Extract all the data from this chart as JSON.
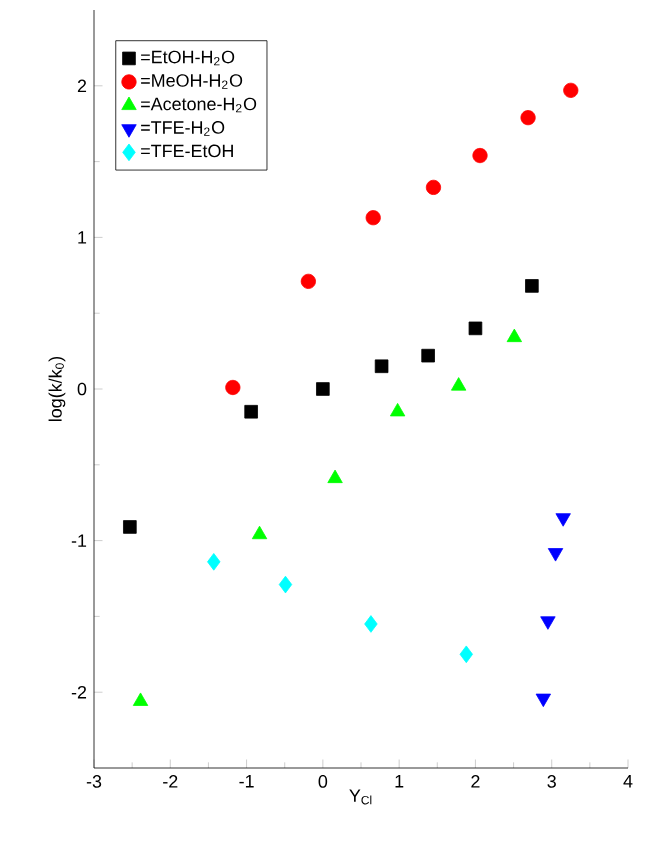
{
  "chart_data": {
    "type": "scatter",
    "xlabel": "Y$_{Cl}$",
    "ylabel": "log(k/k$_{0}$)",
    "xlim": [
      -3,
      4
    ],
    "ylim": [
      -2.5,
      2.5
    ],
    "xticks": [
      -3,
      -2,
      -1,
      0,
      1,
      2,
      3,
      4
    ],
    "yticks": [
      -2,
      -1,
      0,
      1,
      2
    ],
    "grid": false,
    "legend": "top left",
    "series": [
      {
        "name": "=EtOH-H$_{2}$O",
        "color": "#000000",
        "marker": "square",
        "x": [
          -2.53,
          -0.94,
          0.0,
          0.77,
          1.38,
          2.0,
          2.74
        ],
        "values": [
          -0.91,
          -0.15,
          0.0,
          0.15,
          0.22,
          0.4,
          0.68
        ]
      },
      {
        "name": "=MeOH-H$_{2}$O",
        "color": "#ff0000",
        "marker": "circle",
        "x": [
          -1.18,
          -0.19,
          0.66,
          1.45,
          2.06,
          2.69,
          3.25
        ],
        "values": [
          0.01,
          0.71,
          1.13,
          1.33,
          1.54,
          1.79,
          1.97
        ]
      },
      {
        "name": "=Acetone-H$_{2}$O",
        "color": "#00ff00",
        "marker": "triangle",
        "x": [
          -2.39,
          -0.83,
          0.16,
          0.98,
          1.78,
          2.51
        ],
        "values": [
          -2.06,
          -0.96,
          -0.59,
          -0.15,
          0.02,
          0.34
        ]
      },
      {
        "name": "=TFE-H$_{2}$O",
        "color": "#0000ff",
        "marker": "triangle-down",
        "x": [
          2.89,
          2.95,
          3.05,
          3.15
        ],
        "values": [
          -2.04,
          -1.53,
          -1.08,
          -0.85
        ]
      },
      {
        "name": "=TFE-EtOH",
        "color": "#00ffff",
        "marker": "diamond",
        "x": [
          -1.43,
          -0.49,
          0.63,
          1.88
        ],
        "values": [
          -1.14,
          -1.29,
          -1.55,
          -1.75
        ]
      }
    ]
  }
}
